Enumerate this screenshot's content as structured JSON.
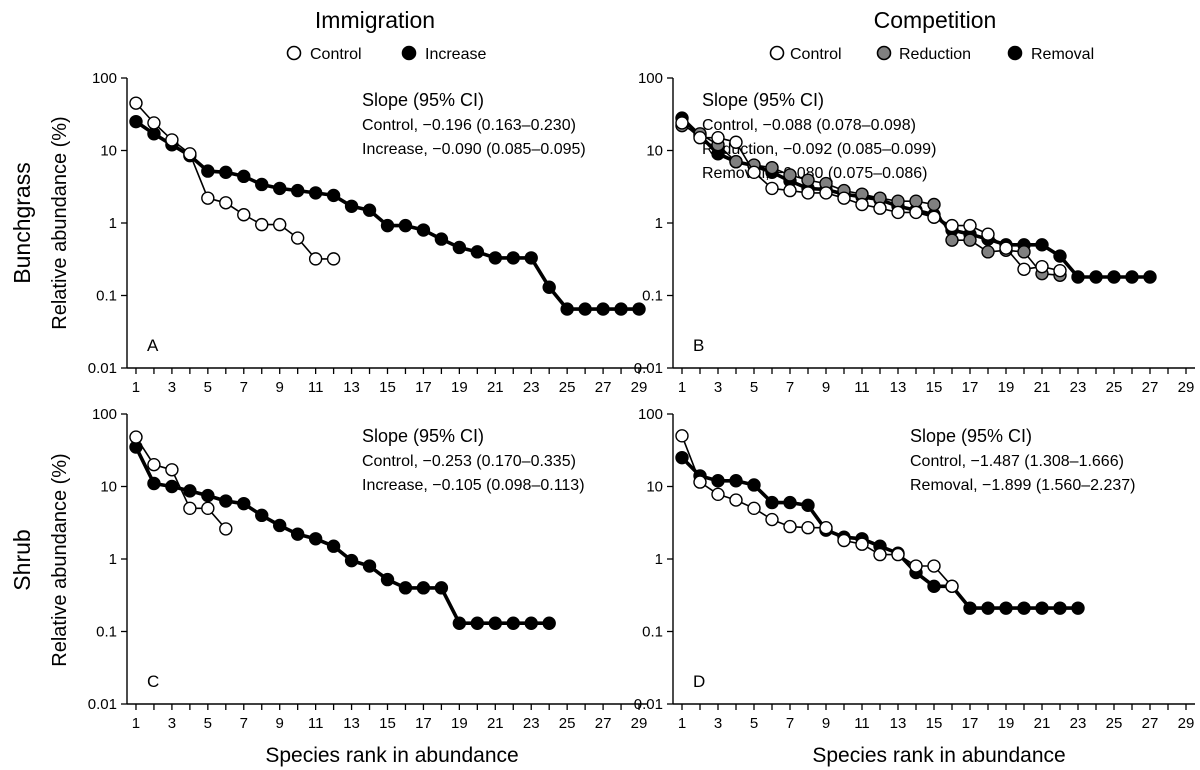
{
  "columns": [
    "Immigration",
    "Competition"
  ],
  "rows": [
    "Bunchgrass",
    "Shrub"
  ],
  "legends": {
    "immigration": [
      {
        "label": "Control",
        "fill": "#ffffff"
      },
      {
        "label": "Increase",
        "fill": "#000000"
      }
    ],
    "competition": [
      {
        "label": "Control",
        "fill": "#ffffff"
      },
      {
        "label": "Reduction",
        "fill": "#808080"
      },
      {
        "label": "Removal",
        "fill": "#000000"
      }
    ]
  },
  "ylabel": "Relative abundance (%)",
  "xlabel": "Species rank in abundance",
  "chart_data": [
    {
      "type": "line",
      "letter": "A",
      "xlim": [
        0.5,
        29.5
      ],
      "ylim": [
        0.01,
        100
      ],
      "yscale": "log",
      "xticks": [
        1,
        3,
        5,
        7,
        9,
        11,
        13,
        15,
        17,
        19,
        21,
        23,
        25,
        27,
        29
      ],
      "yticks": [
        "100",
        "10",
        "1",
        "0.1",
        "0.01"
      ],
      "slope_header": "Slope (95% CI)",
      "slopes": [
        "Control, −0.196 (0.163–0.230)",
        "Increase, −0.090 (0.085–0.095)"
      ],
      "series": [
        {
          "name": "Increase",
          "fill": "#000000",
          "x": [
            1,
            2,
            3,
            4,
            5,
            6,
            7,
            8,
            9,
            10,
            11,
            12,
            13,
            14,
            15,
            16,
            17,
            18,
            19,
            20,
            21,
            22,
            23,
            24,
            25,
            26,
            27,
            28,
            29
          ],
          "y": [
            25,
            17,
            12,
            8.5,
            5.2,
            5.0,
            4.4,
            3.4,
            3.0,
            2.8,
            2.6,
            2.4,
            1.7,
            1.5,
            0.92,
            0.92,
            0.8,
            0.6,
            0.46,
            0.4,
            0.33,
            0.33,
            0.33,
            0.13,
            0.065,
            0.065,
            0.065,
            0.065,
            0.065
          ]
        },
        {
          "name": "Control",
          "fill": "#ffffff",
          "x": [
            1,
            2,
            3,
            4,
            5,
            6,
            7,
            8,
            9,
            10,
            11,
            12
          ],
          "y": [
            45,
            24,
            14,
            9.0,
            2.2,
            1.9,
            1.3,
            0.95,
            0.95,
            0.62,
            0.32,
            0.32
          ]
        }
      ]
    },
    {
      "type": "line",
      "letter": "B",
      "xlim": [
        0.5,
        29.5
      ],
      "ylim": [
        0.01,
        100
      ],
      "yscale": "log",
      "xticks": [
        1,
        3,
        5,
        7,
        9,
        11,
        13,
        15,
        17,
        19,
        21,
        23,
        25,
        27,
        29
      ],
      "yticks": [
        "100",
        "10",
        "1",
        "0.1",
        "0.01"
      ],
      "slope_header": "Slope (95% CI)",
      "slopes": [
        "Control, −0.088 (0.078–0.098)",
        "Reduction, −0.092 (0.085–0.099)",
        "Removal, −0.080 (0.075–0.086)"
      ],
      "series": [
        {
          "name": "Removal",
          "fill": "#000000",
          "x": [
            1,
            2,
            3,
            4,
            5,
            6,
            7,
            8,
            9,
            10,
            11,
            12,
            13,
            14,
            15,
            16,
            17,
            18,
            19,
            20,
            21,
            22,
            23,
            24,
            25,
            26,
            27
          ],
          "y": [
            28,
            16,
            9,
            7,
            6.2,
            5.0,
            3.8,
            3.0,
            2.9,
            2.5,
            2.3,
            2.1,
            1.7,
            1.5,
            1.3,
            0.8,
            0.7,
            0.6,
            0.5,
            0.5,
            0.5,
            0.35,
            0.18,
            0.18,
            0.18,
            0.18,
            0.18
          ]
        },
        {
          "name": "Reduction",
          "fill": "#808080",
          "x": [
            1,
            2,
            3,
            4,
            5,
            6,
            7,
            8,
            9,
            10,
            11,
            12,
            13,
            14,
            15,
            16,
            17,
            18,
            19,
            20,
            21,
            22
          ],
          "y": [
            22,
            17,
            12,
            7,
            6.3,
            5.8,
            4.6,
            3.9,
            3.5,
            2.8,
            2.5,
            2.2,
            2.0,
            2.0,
            1.8,
            0.58,
            0.58,
            0.4,
            0.42,
            0.4,
            0.2,
            0.19
          ]
        },
        {
          "name": "Control",
          "fill": "#ffffff",
          "x": [
            1,
            2,
            3,
            4,
            5,
            6,
            7,
            8,
            9,
            10,
            11,
            12,
            13,
            14,
            15,
            16,
            17,
            18,
            19,
            20,
            21,
            22
          ],
          "y": [
            24,
            15,
            15,
            13,
            5.0,
            3.0,
            2.8,
            2.6,
            2.6,
            2.2,
            1.8,
            1.6,
            1.4,
            1.4,
            1.2,
            0.92,
            0.92,
            0.7,
            0.45,
            0.23,
            0.25,
            0.22
          ]
        }
      ]
    },
    {
      "type": "line",
      "letter": "C",
      "xlim": [
        0.5,
        29.5
      ],
      "ylim": [
        0.01,
        100
      ],
      "yscale": "log",
      "xticks": [
        1,
        3,
        5,
        7,
        9,
        11,
        13,
        15,
        17,
        19,
        21,
        23,
        25,
        27,
        29
      ],
      "yticks": [
        "100",
        "10",
        "1",
        "0.1",
        "0.01"
      ],
      "slope_header": "Slope (95% CI)",
      "slopes": [
        "Control, −0.253 (0.170–0.335)",
        "Increase, −0.105 (0.098–0.113)"
      ],
      "series": [
        {
          "name": "Increase",
          "fill": "#000000",
          "x": [
            1,
            2,
            3,
            4,
            5,
            6,
            7,
            8,
            9,
            10,
            11,
            12,
            13,
            14,
            15,
            16,
            17,
            18,
            19,
            20,
            21,
            22,
            23,
            24
          ],
          "y": [
            35,
            11,
            10,
            8.7,
            7.5,
            6.3,
            5.8,
            4.0,
            2.9,
            2.2,
            1.9,
            1.5,
            0.95,
            0.8,
            0.52,
            0.4,
            0.4,
            0.4,
            0.13,
            0.13,
            0.13,
            0.13,
            0.13,
            0.13
          ]
        },
        {
          "name": "Control",
          "fill": "#ffffff",
          "x": [
            1,
            2,
            3,
            4,
            5,
            6
          ],
          "y": [
            48,
            20,
            17,
            5.0,
            5.0,
            2.6
          ]
        }
      ]
    },
    {
      "type": "line",
      "letter": "D",
      "xlim": [
        0.5,
        29.5
      ],
      "ylim": [
        0.01,
        100
      ],
      "yscale": "log",
      "xticks": [
        1,
        3,
        5,
        7,
        9,
        11,
        13,
        15,
        17,
        19,
        21,
        23,
        25,
        27,
        29
      ],
      "yticks": [
        "100",
        "10",
        "1",
        "0.1",
        "0.01"
      ],
      "slope_header": "Slope (95% CI)",
      "slopes": [
        "Control, −1.487 (1.308–1.666)",
        "Removal, −1.899 (1.560–2.237)"
      ],
      "series": [
        {
          "name": "Removal",
          "fill": "#000000",
          "x": [
            1,
            2,
            3,
            4,
            5,
            6,
            7,
            8,
            9,
            10,
            11,
            12,
            13,
            14,
            15,
            16,
            17,
            18,
            19,
            20,
            21,
            22,
            23
          ],
          "y": [
            25,
            14,
            12,
            12,
            10.5,
            6.0,
            6.0,
            5.5,
            2.5,
            2.0,
            1.9,
            1.5,
            1.2,
            0.65,
            0.42,
            0.42,
            0.21,
            0.21,
            0.21,
            0.21,
            0.21,
            0.21,
            0.21
          ]
        },
        {
          "name": "Control",
          "fill": "#ffffff",
          "x": [
            1,
            2,
            3,
            4,
            5,
            6,
            7,
            8,
            9,
            10,
            11,
            12,
            13,
            14,
            15,
            16
          ],
          "y": [
            50,
            11.5,
            7.8,
            6.5,
            5.0,
            3.5,
            2.8,
            2.7,
            2.7,
            1.8,
            1.6,
            1.15,
            1.15,
            0.8,
            0.8,
            0.42
          ]
        }
      ]
    }
  ]
}
